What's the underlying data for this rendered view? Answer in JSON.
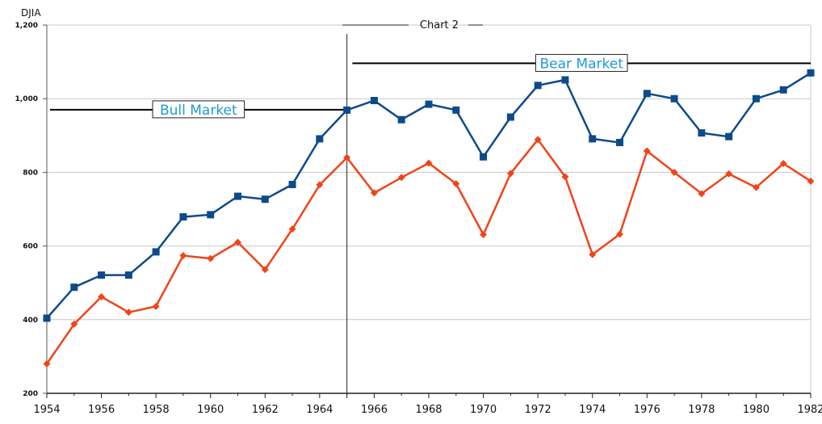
{
  "chart_data": {
    "type": "line",
    "title": "Chart 2",
    "ylabel": "DJIA",
    "xlabel": "",
    "ylim": [
      200,
      1200
    ],
    "xlim": [
      1954,
      1982
    ],
    "grid": true,
    "y_ticks": [
      "200",
      "400",
      "600",
      "800",
      "1,000",
      "1,200"
    ],
    "x_ticks": [
      "1954",
      "1956",
      "1958",
      "1960",
      "1962",
      "1964",
      "1966",
      "1968",
      "1970",
      "1972",
      "1974",
      "1976",
      "1978",
      "1980",
      "1982"
    ],
    "x": [
      1954,
      1955,
      1956,
      1957,
      1958,
      1959,
      1960,
      1961,
      1962,
      1963,
      1964,
      1965,
      1966,
      1967,
      1968,
      1969,
      1970,
      1971,
      1972,
      1973,
      1974,
      1975,
      1976,
      1977,
      1978,
      1979,
      1980,
      1981,
      1982
    ],
    "series": [
      {
        "color": "#0d4a8a",
        "marker": "square",
        "values": [
          404,
          488,
          521,
          521,
          584,
          679,
          685,
          735,
          727,
          767,
          891,
          969,
          995,
          943,
          985,
          969,
          842,
          950,
          1036,
          1051,
          891,
          881,
          1014,
          1000,
          907,
          897,
          1000,
          1024,
          1070
        ]
      },
      {
        "color": "#f0441a",
        "marker": "diamond",
        "values": [
          280,
          388,
          462,
          420,
          436,
          574,
          566,
          610,
          536,
          646,
          766,
          840,
          744,
          786,
          825,
          769,
          631,
          797,
          889,
          788,
          577,
          632,
          858,
          800,
          742,
          796,
          759,
          824,
          776
        ]
      }
    ],
    "annotations": [
      {
        "text": "Bull Market",
        "year_from": 1954,
        "year_to": 1965,
        "level": 970
      },
      {
        "text": "Bear Market",
        "year_from": 1965.2,
        "year_to": 1982,
        "level": 1096
      }
    ],
    "divider_year": 1965,
    "colors": {
      "grid": "#c8c8c8",
      "annotation_text": "#1e9ad6",
      "annotation_line": "#000000"
    }
  }
}
